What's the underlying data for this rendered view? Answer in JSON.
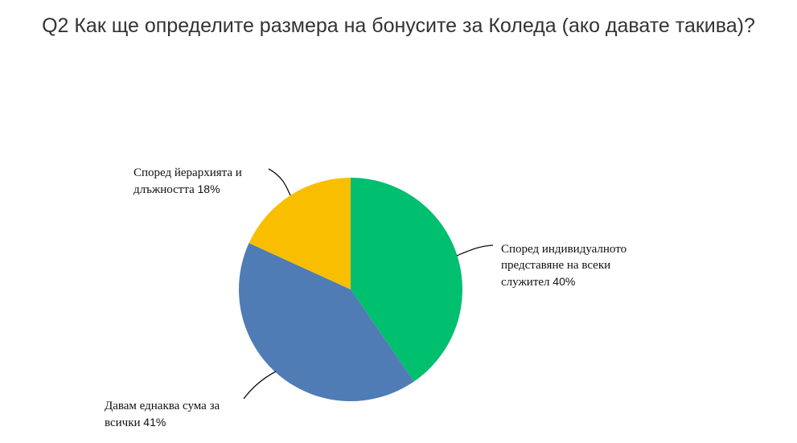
{
  "chart_data": {
    "type": "pie",
    "title": "Q2 Как ще определите размера на бонусите за Коледа (ако давате такива)?",
    "slices": [
      {
        "label": "Според индивидуалното представяне на всеки служител",
        "percent_label": "40%",
        "value": 40,
        "color": "#00bf6f"
      },
      {
        "label": "Давам еднаква сума за всички",
        "percent_label": "41%",
        "value": 41,
        "color": "#507cb6"
      },
      {
        "label": "Според йерархията и длъжността",
        "percent_label": "18%",
        "value": 18,
        "color": "#f9be00"
      }
    ]
  }
}
